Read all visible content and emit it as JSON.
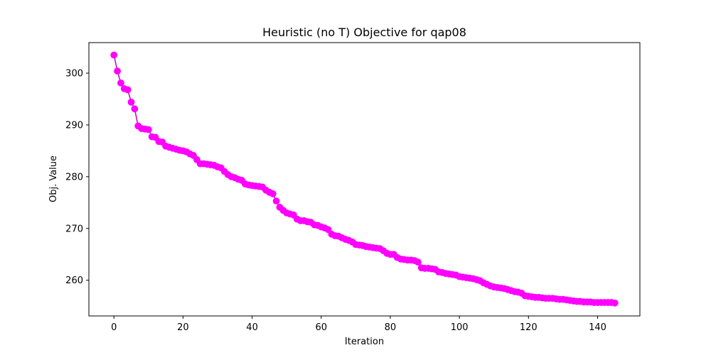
{
  "chart_data": {
    "type": "line",
    "title": "Heuristic (no T) Objective for qap08",
    "xlabel": "Iteration",
    "ylabel": "Obj. Value",
    "xlim": [
      -7.25,
      152.25
    ],
    "ylim": [
      253.1,
      305.9
    ],
    "xticks": [
      0,
      20,
      40,
      60,
      80,
      100,
      120,
      140
    ],
    "yticks": [
      260,
      270,
      280,
      290,
      300
    ],
    "grid": false,
    "legend": "none",
    "marker": "circle",
    "color": "#ff00ff",
    "line_color": "#bf00bf",
    "x": [
      0,
      1,
      2,
      3,
      4,
      5,
      6,
      7,
      8,
      9,
      10,
      11,
      12,
      13,
      14,
      15,
      16,
      17,
      18,
      19,
      20,
      21,
      22,
      23,
      24,
      25,
      26,
      27,
      28,
      29,
      30,
      31,
      32,
      33,
      34,
      35,
      36,
      37,
      38,
      39,
      40,
      41,
      42,
      43,
      44,
      45,
      46,
      47,
      48,
      49,
      50,
      51,
      52,
      53,
      54,
      55,
      56,
      57,
      58,
      59,
      60,
      61,
      62,
      63,
      64,
      65,
      66,
      67,
      68,
      69,
      70,
      71,
      72,
      73,
      74,
      75,
      76,
      77,
      78,
      79,
      80,
      81,
      82,
      83,
      84,
      85,
      86,
      87,
      88,
      89,
      90,
      91,
      92,
      93,
      94,
      95,
      96,
      97,
      98,
      99,
      100,
      101,
      102,
      103,
      104,
      105,
      106,
      107,
      108,
      109,
      110,
      111,
      112,
      113,
      114,
      115,
      116,
      117,
      118,
      119,
      120,
      121,
      122,
      123,
      124,
      125,
      126,
      127,
      128,
      129,
      130,
      131,
      132,
      133,
      134,
      135,
      136,
      137,
      138,
      139,
      140,
      141,
      142,
      143,
      144,
      145
    ],
    "y": [
      303.5,
      300.4,
      298.1,
      297.0,
      296.8,
      294.4,
      293.1,
      289.8,
      289.3,
      289.2,
      289.1,
      287.7,
      287.6,
      286.8,
      286.7,
      285.9,
      285.7,
      285.5,
      285.3,
      285.1,
      285.0,
      284.8,
      284.4,
      284.1,
      283.3,
      282.5,
      282.5,
      282.4,
      282.3,
      282.2,
      281.9,
      281.7,
      281.0,
      280.4,
      280.0,
      279.8,
      279.5,
      279.3,
      278.6,
      278.4,
      278.3,
      278.2,
      278.1,
      278.0,
      277.4,
      277.0,
      276.7,
      275.3,
      274.1,
      273.5,
      273.0,
      272.8,
      272.6,
      271.8,
      271.5,
      271.5,
      271.3,
      271.2,
      270.7,
      270.6,
      270.3,
      270.1,
      269.8,
      268.9,
      268.6,
      268.5,
      268.2,
      267.9,
      267.7,
      267.4,
      266.9,
      266.8,
      266.7,
      266.5,
      266.4,
      266.3,
      266.2,
      266.1,
      265.7,
      265.2,
      265.0,
      265.0,
      264.4,
      264.1,
      264.0,
      263.9,
      263.9,
      263.8,
      263.5,
      262.4,
      262.3,
      262.3,
      262.2,
      262.1,
      261.6,
      261.5,
      261.3,
      261.2,
      261.1,
      261.0,
      260.7,
      260.6,
      260.5,
      260.4,
      260.3,
      260.1,
      259.9,
      259.5,
      259.2,
      258.9,
      258.7,
      258.6,
      258.5,
      258.4,
      258.2,
      258.0,
      257.8,
      257.7,
      257.5,
      257.0,
      256.9,
      256.8,
      256.7,
      256.7,
      256.6,
      256.5,
      256.5,
      256.5,
      256.4,
      256.3,
      256.3,
      256.2,
      256.1,
      256.0,
      255.9,
      255.9,
      255.8,
      255.8,
      255.8,
      255.7,
      255.7,
      255.7,
      255.7,
      255.7,
      255.7,
      255.6
    ]
  }
}
